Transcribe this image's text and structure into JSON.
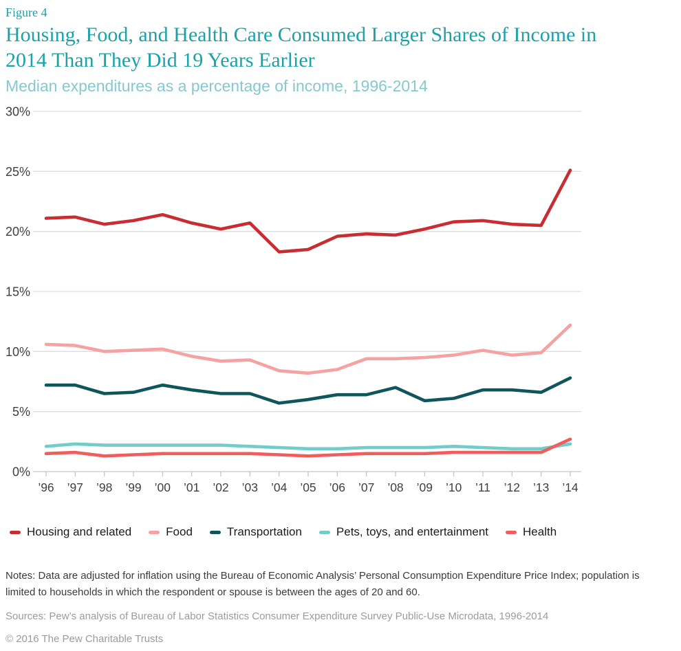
{
  "figure_label": "Figure 4",
  "title": "Housing, Food, and Health Care Consumed Larger Shares of Income in 2014 Than They Did 19 Years Earlier",
  "subtitle": "Median expenditures as a percentage of income, 1996-2014",
  "chart_data": {
    "type": "line",
    "title": "Housing, Food, and Health Care Consumed Larger Shares of Income in 2014 Than They Did 19 Years Earlier",
    "subtitle": "Median expenditures as a percentage of income, 1996-2014",
    "categories": [
      "’96",
      "’97",
      "’98",
      "’99",
      "’00",
      "’01",
      "’02",
      "’03",
      "’04",
      "’05",
      "’06",
      "’07",
      "’08",
      "’09",
      "’10",
      "’11",
      "’12",
      "’13",
      "’14"
    ],
    "ylim": [
      0,
      30
    ],
    "y_ticks": [
      0,
      5,
      10,
      15,
      20,
      25,
      30
    ],
    "y_tick_suffix": "%",
    "grid": true,
    "legend_position": "bottom",
    "series": [
      {
        "name": "Housing and related",
        "color": "#c82d33",
        "values": [
          21.1,
          21.2,
          20.6,
          20.9,
          21.4,
          20.7,
          20.2,
          20.7,
          18.3,
          18.5,
          19.6,
          19.8,
          19.7,
          20.2,
          20.8,
          20.9,
          20.6,
          20.5,
          25.1
        ]
      },
      {
        "name": "Food",
        "color": "#f5a2a2",
        "values": [
          10.6,
          10.5,
          10.0,
          10.1,
          10.2,
          9.6,
          9.2,
          9.3,
          8.4,
          8.2,
          8.5,
          9.4,
          9.4,
          9.5,
          9.7,
          10.1,
          9.7,
          9.9,
          12.2
        ]
      },
      {
        "name": "Transportation",
        "color": "#0f565c",
        "values": [
          7.2,
          7.2,
          6.5,
          6.6,
          7.2,
          6.8,
          6.5,
          6.5,
          5.7,
          6.0,
          6.4,
          6.4,
          7.0,
          5.9,
          6.1,
          6.8,
          6.8,
          6.6,
          7.8
        ]
      },
      {
        "name": "Pets, toys, and entertainment",
        "color": "#74ccca",
        "values": [
          2.1,
          2.3,
          2.2,
          2.2,
          2.2,
          2.2,
          2.2,
          2.1,
          2.0,
          1.9,
          1.9,
          2.0,
          2.0,
          2.0,
          2.1,
          2.0,
          1.9,
          1.9,
          2.3
        ]
      },
      {
        "name": "Health",
        "color": "#ef5d5c",
        "values": [
          1.5,
          1.6,
          1.3,
          1.4,
          1.5,
          1.5,
          1.5,
          1.5,
          1.4,
          1.3,
          1.4,
          1.5,
          1.5,
          1.5,
          1.6,
          1.6,
          1.6,
          1.6,
          2.7
        ]
      }
    ]
  },
  "notes": "Notes: Data are adjusted for inflation using the Bureau of Economic Analysis’ Personal Consumption Expenditure Price Index; population is limited to households in which the respondent or spouse is between the ages of 20 and 60.",
  "sources": "Sources: Pew’s analysis of Bureau of Labor Statistics Consumer Expenditure Survey Public-Use Microdata, 1996-2014",
  "copyright": "© 2016 The Pew Charitable Trusts"
}
